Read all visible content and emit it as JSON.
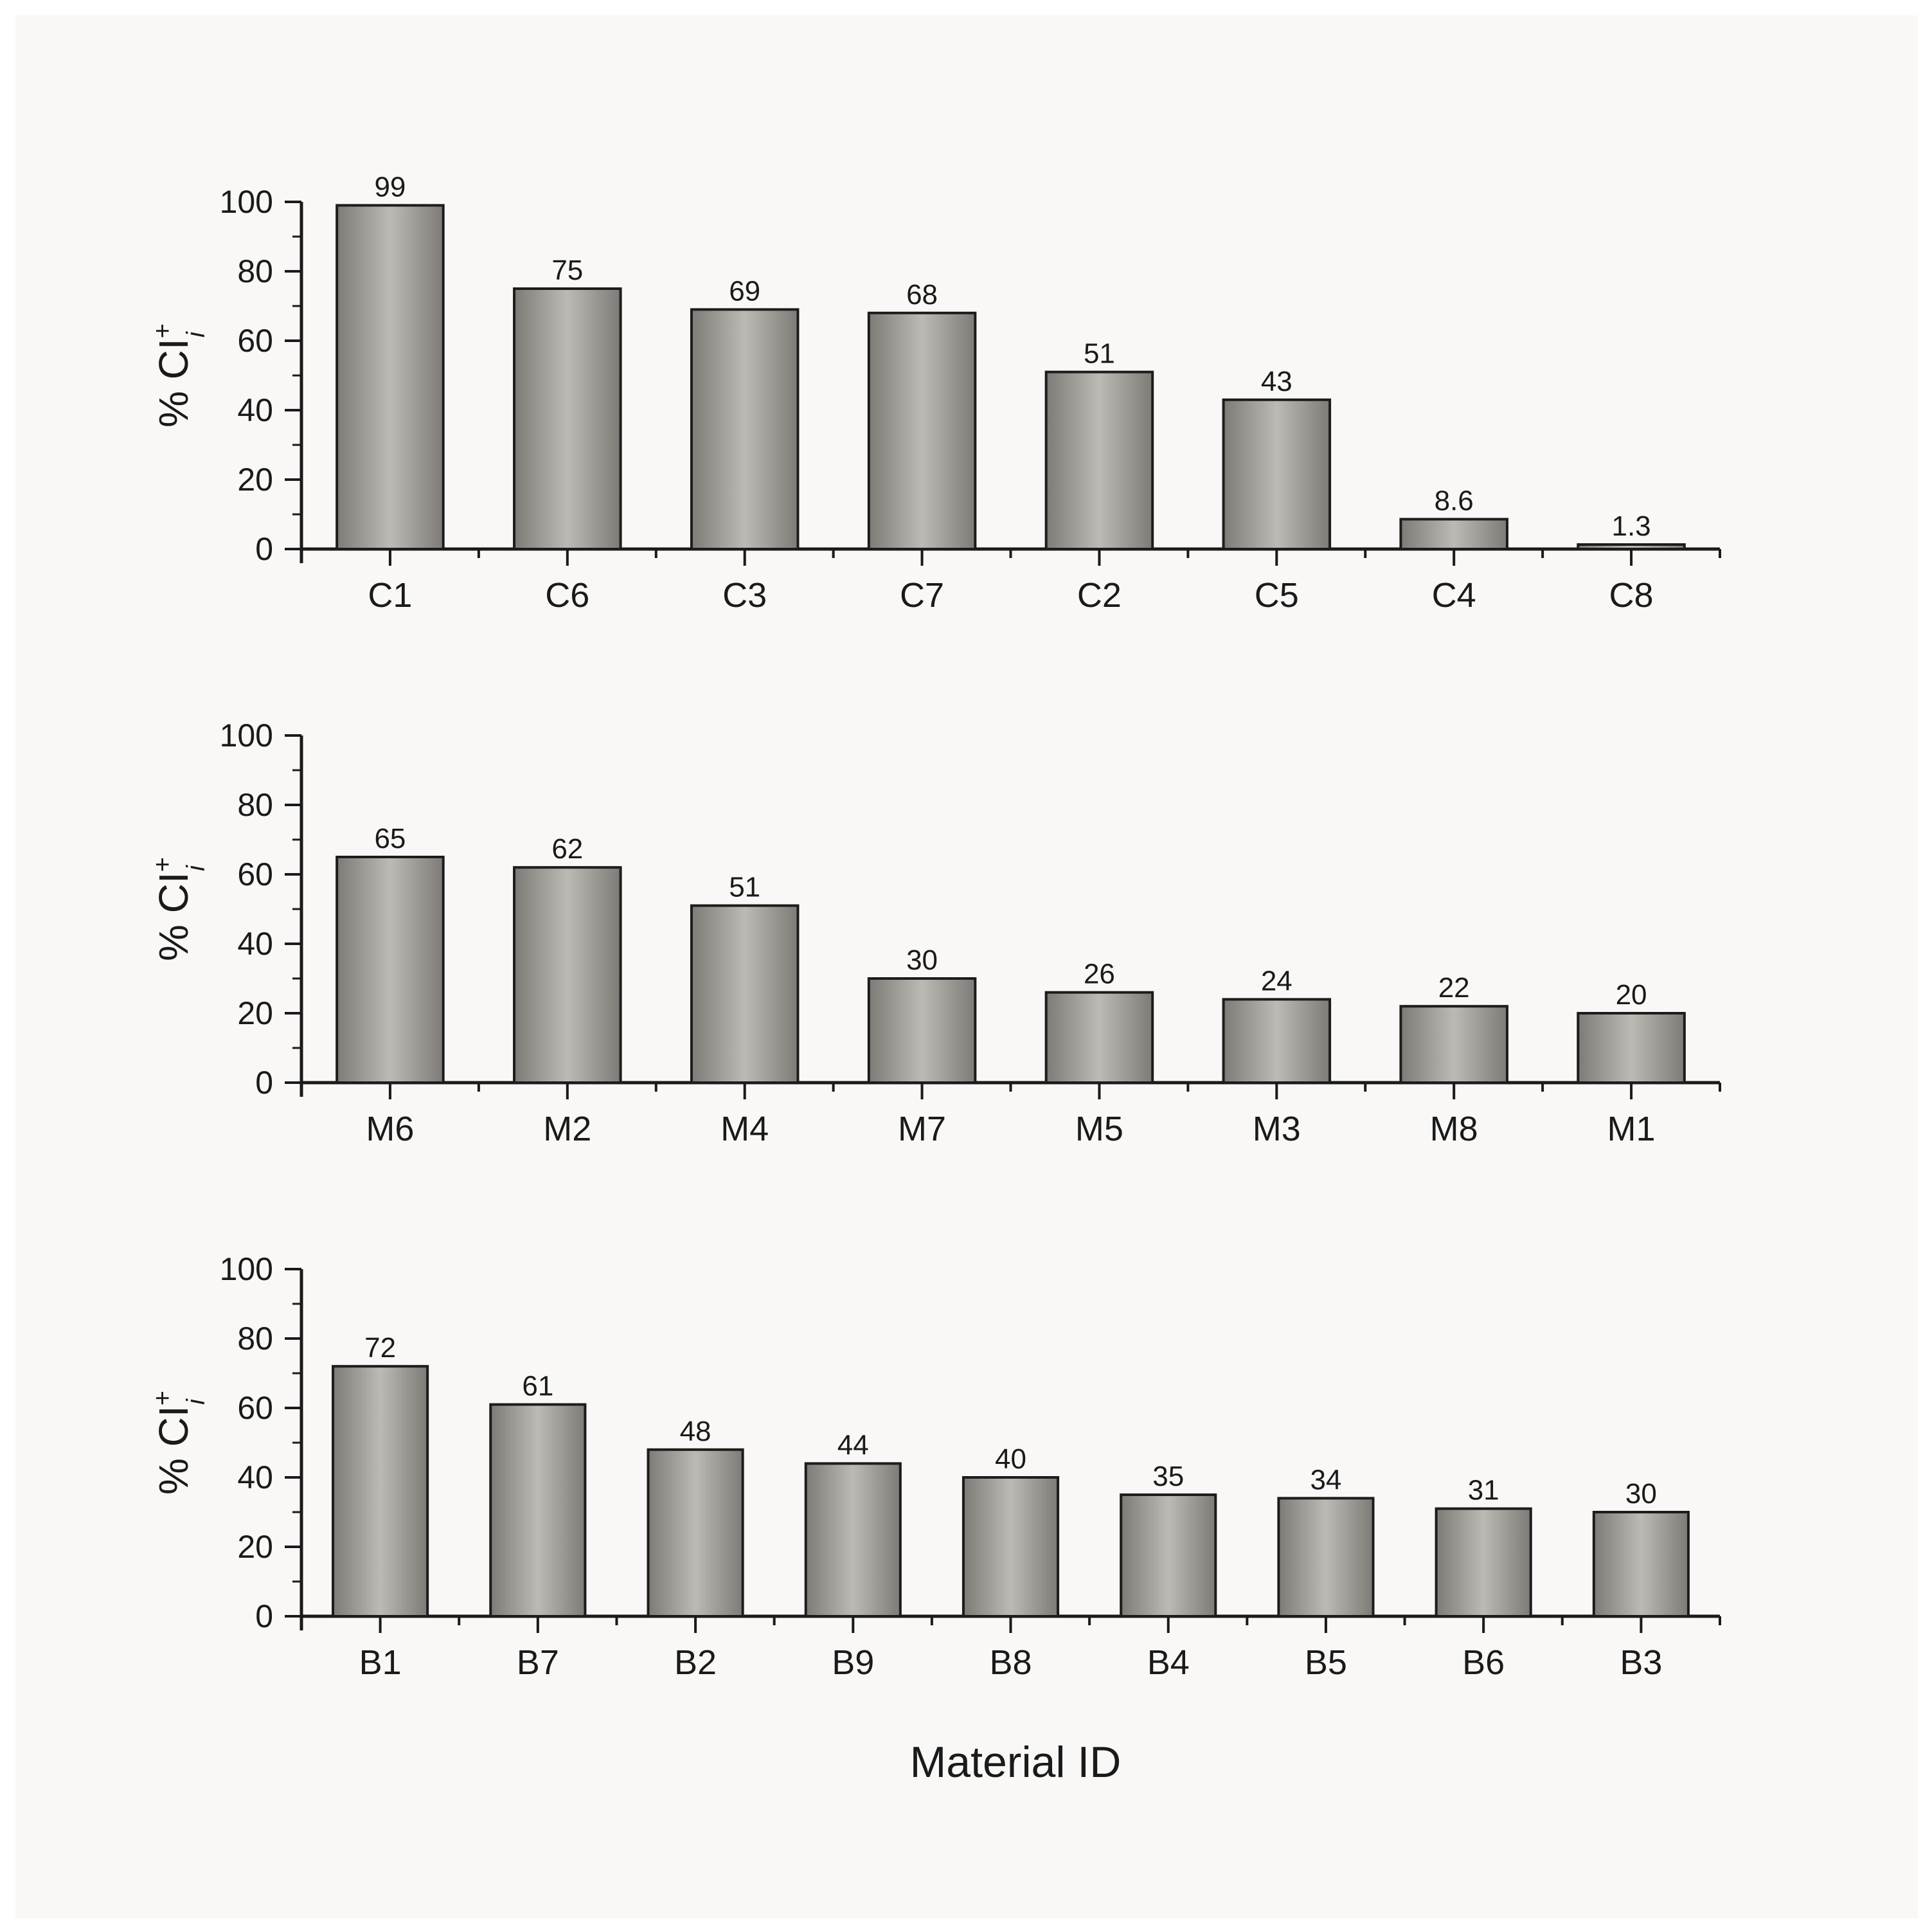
{
  "figure": {
    "xlabel": "Material ID"
  },
  "chart_data": [
    {
      "type": "bar",
      "ylabel": "% CI",
      "ylabel_superscript": "+",
      "ylabel_subscript": "i",
      "ylim": [
        0,
        100
      ],
      "yticks": [
        0,
        20,
        40,
        60,
        80,
        100
      ],
      "grid": false,
      "categories": [
        "C1",
        "C6",
        "C3",
        "C7",
        "C2",
        "C5",
        "C4",
        "C8"
      ],
      "values": [
        99,
        75,
        69,
        68,
        51,
        43,
        8.6,
        1.3
      ],
      "value_labels": [
        "99",
        "75",
        "69",
        "68",
        "51",
        "43",
        "8.6",
        "1.3"
      ]
    },
    {
      "type": "bar",
      "ylabel": "% CI",
      "ylabel_superscript": "+",
      "ylabel_subscript": "i",
      "ylim": [
        0,
        100
      ],
      "yticks": [
        0,
        20,
        40,
        60,
        80,
        100
      ],
      "grid": false,
      "categories": [
        "M6",
        "M2",
        "M4",
        "M7",
        "M5",
        "M3",
        "M8",
        "M1"
      ],
      "values": [
        65,
        62,
        51,
        30,
        26,
        24,
        22,
        20
      ],
      "value_labels": [
        "65",
        "62",
        "51",
        "30",
        "26",
        "24",
        "22",
        "20"
      ]
    },
    {
      "type": "bar",
      "ylabel": "% CI",
      "ylabel_superscript": "+",
      "ylabel_subscript": "i",
      "ylim": [
        0,
        100
      ],
      "yticks": [
        0,
        20,
        40,
        60,
        80,
        100
      ],
      "grid": false,
      "categories": [
        "B1",
        "B7",
        "B2",
        "B9",
        "B8",
        "B4",
        "B5",
        "B6",
        "B3"
      ],
      "values": [
        72,
        61,
        48,
        44,
        40,
        35,
        34,
        31,
        30
      ],
      "value_labels": [
        "72",
        "61",
        "48",
        "44",
        "40",
        "35",
        "34",
        "31",
        "30"
      ]
    }
  ],
  "colors": {
    "bar_edge": "#1c1c1c",
    "bar_dark": "#7e7b77",
    "bar_light": "#bdbab5",
    "axis": "#1a1a1a",
    "text": "#1a1a1a",
    "background": "#f9f8f6"
  }
}
